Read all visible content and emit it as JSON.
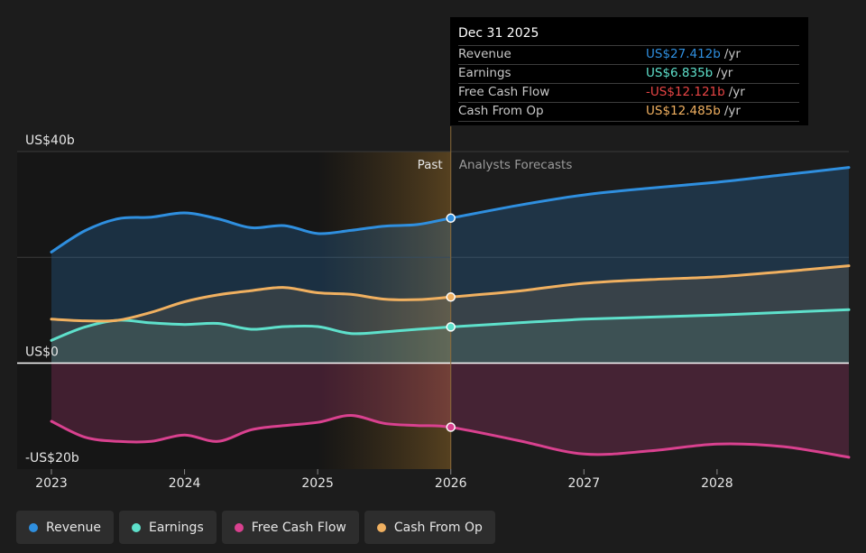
{
  "chart_data": {
    "type": "area",
    "y_unit_labels": [
      "US$40b",
      "US$0",
      "-US$20b"
    ],
    "ylim": [
      -20,
      40
    ],
    "x_ticks": [
      "2023",
      "2024",
      "2025",
      "2026",
      "2027",
      "2028"
    ],
    "x_range": [
      2023.0,
      2028.99
    ],
    "divider_x": 2026.0,
    "past_label": "Past",
    "forecast_label": "Analysts Forecasts",
    "series": [
      {
        "name": "Revenue",
        "color": "#2f8fdf",
        "x": [
          2023.0,
          2023.25,
          2023.5,
          2023.75,
          2024.0,
          2024.25,
          2024.5,
          2024.75,
          2025.0,
          2025.25,
          2025.5,
          2025.75,
          2026.0,
          2026.5,
          2027.0,
          2027.5,
          2028.0,
          2028.5,
          2028.99
        ],
        "values": [
          21,
          25,
          27.3,
          27.6,
          28.4,
          27.3,
          25.6,
          26,
          24.5,
          25.1,
          25.9,
          26.2,
          27.412,
          29.8,
          31.8,
          33.1,
          34.2,
          35.6,
          37.0
        ]
      },
      {
        "name": "Earnings",
        "color": "#5ee0cb",
        "x": [
          2023.0,
          2023.25,
          2023.5,
          2023.75,
          2024.0,
          2024.25,
          2024.5,
          2024.75,
          2025.0,
          2025.25,
          2025.5,
          2025.75,
          2026.0,
          2026.5,
          2027.0,
          2027.5,
          2028.0,
          2028.5,
          2028.99
        ],
        "values": [
          4.3,
          6.8,
          8.1,
          7.6,
          7.3,
          7.5,
          6.4,
          6.9,
          6.9,
          5.6,
          5.9,
          6.4,
          6.835,
          7.6,
          8.3,
          8.7,
          9.1,
          9.6,
          10.1
        ]
      },
      {
        "name": "Free Cash Flow",
        "color": "#d9418f",
        "x": [
          2023.0,
          2023.25,
          2023.5,
          2023.75,
          2024.0,
          2024.25,
          2024.5,
          2024.75,
          2025.0,
          2025.25,
          2025.5,
          2025.75,
          2026.0,
          2026.5,
          2027.0,
          2027.5,
          2028.0,
          2028.5,
          2028.99
        ],
        "values": [
          -11.0,
          -14.0,
          -14.8,
          -14.8,
          -13.6,
          -14.8,
          -12.6,
          -11.8,
          -11.2,
          -9.9,
          -11.4,
          -11.8,
          -12.121,
          -14.6,
          -17.2,
          -16.6,
          -15.3,
          -15.8,
          -17.8
        ]
      },
      {
        "name": "Cash From Op",
        "color": "#f0b060",
        "x": [
          2023.0,
          2023.25,
          2023.5,
          2023.75,
          2024.0,
          2024.25,
          2024.5,
          2024.75,
          2025.0,
          2025.25,
          2025.5,
          2025.75,
          2026.0,
          2026.5,
          2027.0,
          2027.5,
          2028.0,
          2028.5,
          2028.99
        ],
        "values": [
          8.3,
          8.0,
          8.1,
          9.6,
          11.6,
          12.9,
          13.7,
          14.3,
          13.3,
          13.0,
          12.1,
          12.0,
          12.485,
          13.6,
          15.1,
          15.8,
          16.3,
          17.3,
          18.4
        ]
      }
    ]
  },
  "tooltip": {
    "date": "Dec 31 2025",
    "rows": [
      {
        "label": "Revenue",
        "value": "US$27.412b",
        "unit": "/yr",
        "color": "#2f8fdf"
      },
      {
        "label": "Earnings",
        "value": "US$6.835b",
        "unit": "/yr",
        "color": "#5ee0cb"
      },
      {
        "label": "Free Cash Flow",
        "value": "-US$12.121b",
        "unit": "/yr",
        "color": "#e84545"
      },
      {
        "label": "Cash From Op",
        "value": "US$12.485b",
        "unit": "/yr",
        "color": "#f0b060"
      }
    ]
  },
  "legend": [
    {
      "label": "Revenue",
      "color": "#2f8fdf"
    },
    {
      "label": "Earnings",
      "color": "#5ee0cb"
    },
    {
      "label": "Free Cash Flow",
      "color": "#d9418f"
    },
    {
      "label": "Cash From Op",
      "color": "#f0b060"
    }
  ]
}
